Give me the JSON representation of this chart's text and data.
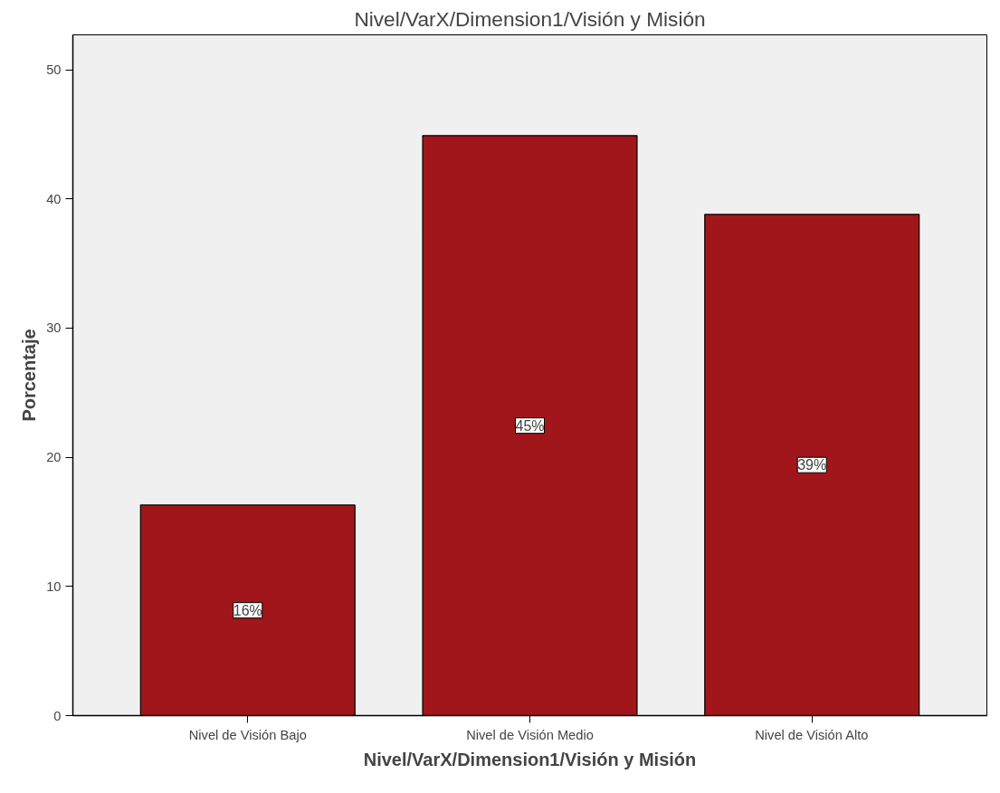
{
  "chart_data": {
    "type": "bar",
    "title": "Nivel/VarX/Dimension1/Visión y Misión",
    "xlabel": "Nivel/VarX/Dimension1/Visión y Misión",
    "ylabel": "Porcentaje",
    "categories": [
      "Nivel de Visión Bajo",
      "Nivel de Visión Medio",
      "Nivel de Visión Alto"
    ],
    "values": [
      16.3,
      44.9,
      38.8
    ],
    "value_labels": [
      "16%",
      "45%",
      "39%"
    ],
    "color": "#a0161a",
    "ylim": [
      0,
      52.7
    ],
    "yticks": [
      0,
      10,
      20,
      30,
      40,
      50
    ],
    "grid": false
  }
}
